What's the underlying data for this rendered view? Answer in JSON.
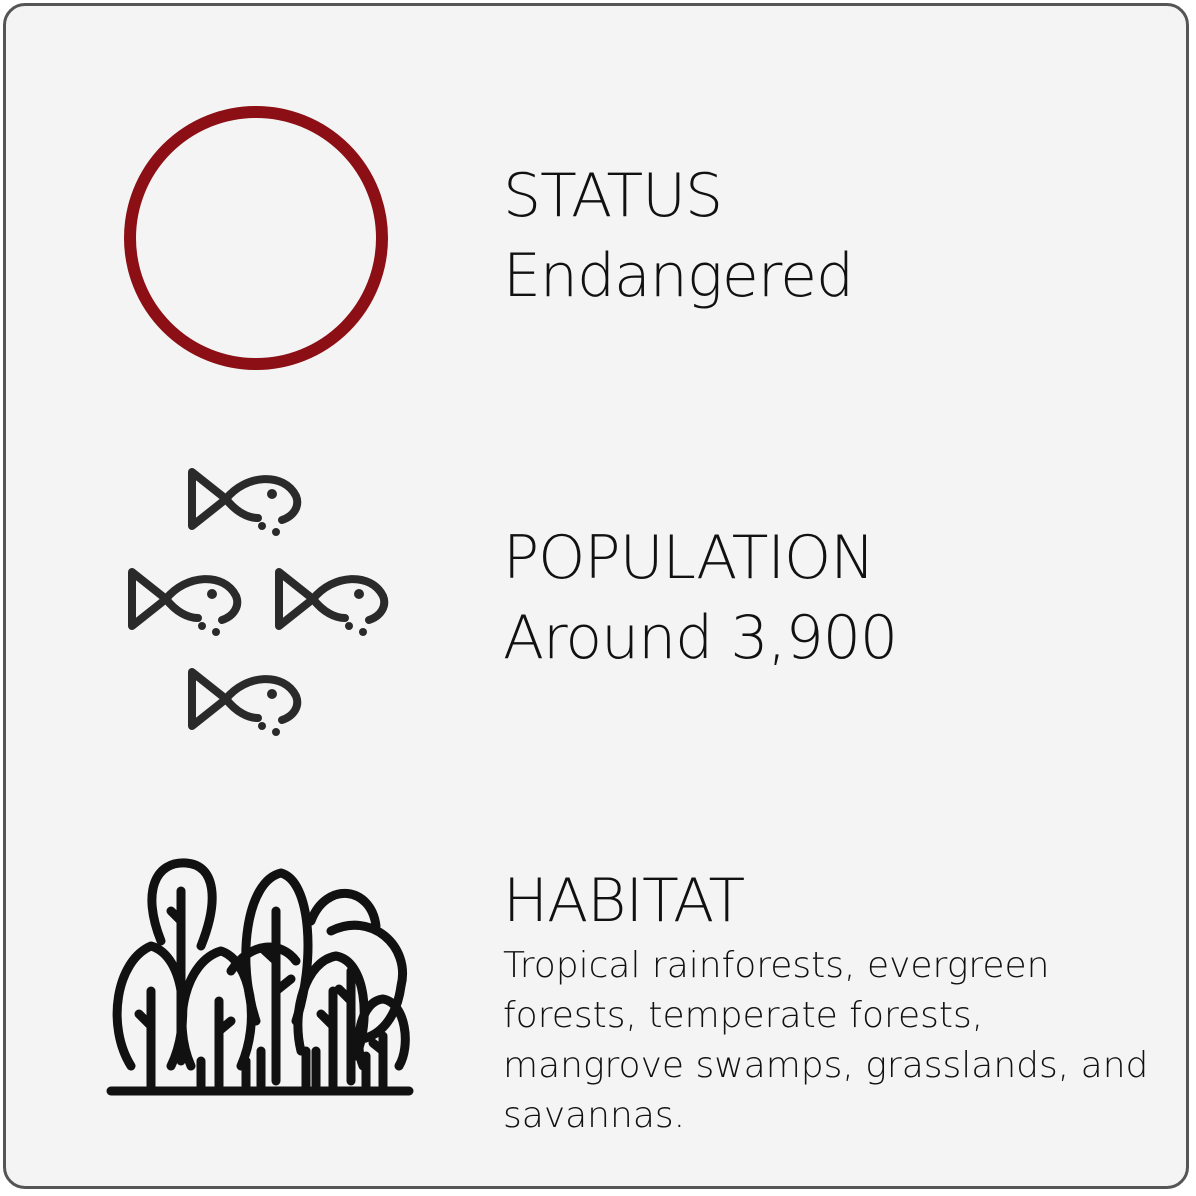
{
  "status": {
    "label": "STATUS",
    "value": "Endangered",
    "icon": "status-ring-icon",
    "color": "#8b0f14"
  },
  "population": {
    "label": "POPULATION",
    "value": "Around 3,900",
    "icon": "fish-school-icon"
  },
  "habitat": {
    "label": "HABITAT",
    "value": "Tropical rainforests, evergreen forests, temperate forests, mangrove swamps, grasslands, and savannas.",
    "icon": "forest-trees-icon"
  }
}
